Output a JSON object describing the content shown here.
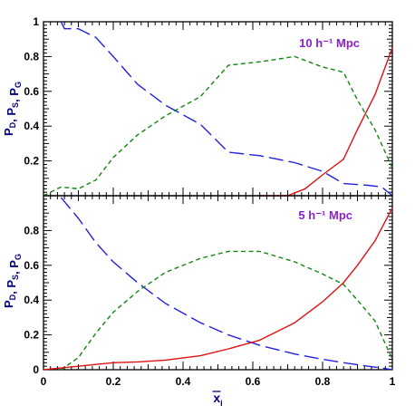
{
  "chart_data": [
    {
      "type": "line",
      "annotation": "10 h⁻¹ Mpc",
      "ylabel": {
        "base": [
          "P",
          ", P",
          ", P"
        ],
        "subs": [
          "D",
          "S",
          "G"
        ]
      },
      "xlim": [
        0,
        1
      ],
      "ylim": [
        0,
        1
      ],
      "yticks": [
        "0.2",
        "0.4",
        "0.6",
        "0.8",
        "1"
      ],
      "series": [
        {
          "color": "#2222dd",
          "dash": "long",
          "x": [
            0.05,
            0.06,
            0.1,
            0.15,
            0.2,
            0.27,
            0.35,
            0.45,
            0.53,
            0.62,
            0.72,
            0.8,
            0.86,
            0.93,
            0.97,
            1.0
          ],
          "y": [
            1.0,
            0.96,
            0.96,
            0.91,
            0.8,
            0.64,
            0.52,
            0.41,
            0.25,
            0.23,
            0.19,
            0.14,
            0.07,
            0.06,
            0.05,
            0.0
          ]
        },
        {
          "color": "#118811",
          "dash": "short",
          "x": [
            0.0,
            0.05,
            0.1,
            0.15,
            0.2,
            0.27,
            0.35,
            0.45,
            0.53,
            0.62,
            0.72,
            0.8,
            0.86,
            0.9,
            0.95,
            1.0
          ],
          "y": [
            0.0,
            0.05,
            0.04,
            0.09,
            0.22,
            0.35,
            0.46,
            0.57,
            0.75,
            0.77,
            0.8,
            0.74,
            0.71,
            0.55,
            0.38,
            0.16
          ]
        },
        {
          "color": "#dd1111",
          "dash": "solid",
          "x": [
            0.62,
            0.7,
            0.75,
            0.8,
            0.86,
            0.9,
            0.95,
            1.0
          ],
          "y": [
            0.0,
            0.0,
            0.04,
            0.12,
            0.21,
            0.38,
            0.58,
            0.85
          ]
        }
      ]
    },
    {
      "type": "line",
      "annotation": "5 h⁻¹ Mpc",
      "ylabel": {
        "base": [
          "P",
          ", P",
          ", P"
        ],
        "subs": [
          "D",
          "S",
          "G"
        ]
      },
      "xlabel": {
        "base": "x",
        "sub": "i"
      },
      "xlim": [
        0,
        1
      ],
      "ylim": [
        0,
        1
      ],
      "xticks": [
        "0",
        "0.2",
        "0.4",
        "0.6",
        "0.8",
        "1"
      ],
      "yticks": [
        "0",
        "0.2",
        "0.4",
        "0.6",
        "0.8"
      ],
      "series": [
        {
          "color": "#2222dd",
          "dash": "long",
          "x": [
            0.05,
            0.1,
            0.15,
            0.2,
            0.27,
            0.35,
            0.45,
            0.53,
            0.62,
            0.72,
            0.8,
            0.86,
            0.93,
            0.97,
            1.0
          ],
          "y": [
            0.99,
            0.87,
            0.73,
            0.62,
            0.5,
            0.38,
            0.27,
            0.2,
            0.14,
            0.09,
            0.06,
            0.04,
            0.02,
            0.01,
            0.0
          ]
        },
        {
          "color": "#118811",
          "dash": "short",
          "x": [
            0.05,
            0.1,
            0.15,
            0.2,
            0.27,
            0.35,
            0.45,
            0.53,
            0.62,
            0.72,
            0.8,
            0.86,
            0.9,
            0.95,
            1.0
          ],
          "y": [
            0.0,
            0.07,
            0.21,
            0.33,
            0.45,
            0.56,
            0.64,
            0.68,
            0.68,
            0.62,
            0.55,
            0.49,
            0.4,
            0.28,
            0.06
          ]
        },
        {
          "color": "#dd1111",
          "dash": "solid",
          "x": [
            0.0,
            0.05,
            0.1,
            0.15,
            0.2,
            0.27,
            0.35,
            0.45,
            0.53,
            0.62,
            0.72,
            0.8,
            0.86,
            0.9,
            0.95,
            1.0
          ],
          "y": [
            0.0,
            0.01,
            0.02,
            0.03,
            0.04,
            0.045,
            0.055,
            0.08,
            0.12,
            0.17,
            0.27,
            0.39,
            0.5,
            0.6,
            0.74,
            0.93
          ]
        }
      ]
    }
  ]
}
